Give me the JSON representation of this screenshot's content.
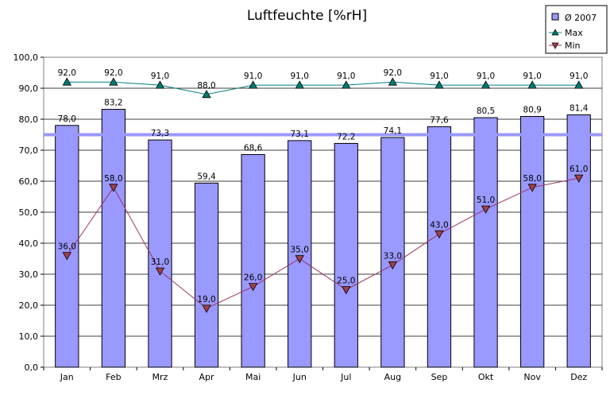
{
  "chart_data": {
    "type": "bar",
    "title": "Luftfeuchte [%rH]",
    "categories": [
      "Jan",
      "Feb",
      "Mrz",
      "Apr",
      "Mai",
      "Jun",
      "Jul",
      "Aug",
      "Sep",
      "Okt",
      "Nov",
      "Dez"
    ],
    "ylim": [
      0,
      100
    ],
    "yticks": [
      "0,0",
      "10,0",
      "20,0",
      "30,0",
      "40,0",
      "50,0",
      "60,0",
      "70,0",
      "80,0",
      "90,0",
      "100,0"
    ],
    "reference_line": {
      "value": 75
    },
    "series": [
      {
        "name": "Ø 2007",
        "type": "bar",
        "color": "#9999ff",
        "values": [
          78.0,
          83.2,
          73.3,
          59.4,
          68.6,
          73.1,
          72.2,
          74.1,
          77.6,
          80.5,
          80.9,
          81.4
        ],
        "labels": [
          "78,0",
          "83,2",
          "73,3",
          "59,4",
          "68,6",
          "73,1",
          "72,2",
          "74,1",
          "77,6",
          "80,5",
          "80,9",
          "81,4"
        ]
      },
      {
        "name": "Max",
        "type": "line",
        "marker": "triangle-up",
        "color": "#008080",
        "marker_color": "#007a6e",
        "values": [
          92.0,
          92.0,
          91.0,
          88.0,
          91.0,
          91.0,
          91.0,
          92.0,
          91.0,
          91.0,
          91.0,
          91.0
        ],
        "labels": [
          "92,0",
          "92,0",
          "91,0",
          "88,0",
          "91,0",
          "91,0",
          "91,0",
          "92,0",
          "91,0",
          "91,0",
          "91,0",
          "91,0"
        ]
      },
      {
        "name": "Min",
        "type": "line",
        "marker": "triangle-down",
        "color": "#993366",
        "marker_color": "#a0404a",
        "values": [
          36.0,
          58.0,
          31.0,
          19.0,
          26.0,
          35.0,
          25.0,
          33.0,
          43.0,
          51.0,
          58.0,
          61.0
        ],
        "labels": [
          "36,0",
          "58,0",
          "31,0",
          "19,0",
          "26,0",
          "35,0",
          "25,0",
          "33,0",
          "43,0",
          "51,0",
          "58,0",
          "61,0"
        ]
      }
    ],
    "legend_position": "top-right",
    "grid": true
  }
}
